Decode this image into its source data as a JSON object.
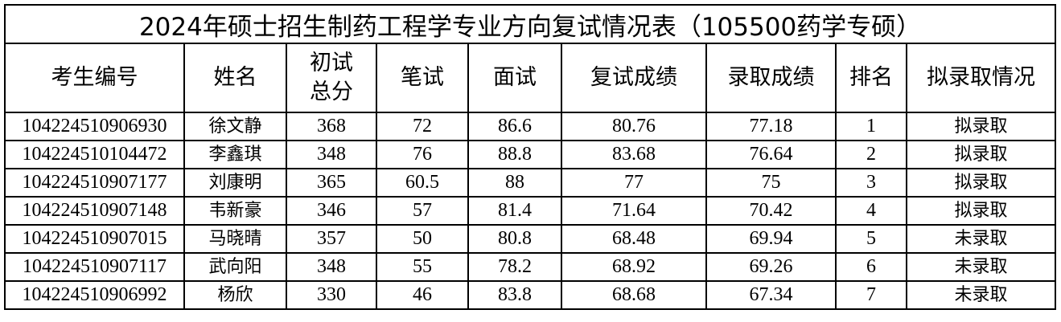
{
  "title": "2024年硕士招生制药工程学专业方向复试情况表（105500药学专硕）",
  "headers": [
    "考生编号",
    "姓名",
    "初试总分",
    "笔试",
    "面试",
    "复试成绩",
    "录取成绩",
    "排名",
    "拟录取情况"
  ],
  "rows": [
    [
      "104224510906930",
      "徐文静",
      "368",
      "72",
      "86.6",
      "80.76",
      "77.18",
      "1",
      "拟录取"
    ],
    [
      "104224510104472",
      "李鑫琪",
      "348",
      "76",
      "88.8",
      "83.68",
      "76.64",
      "2",
      "拟录取"
    ],
    [
      "104224510907177",
      "刘康明",
      "365",
      "60.5",
      "88",
      "77",
      "75",
      "3",
      "拟录取"
    ],
    [
      "104224510907148",
      "韦新豪",
      "346",
      "57",
      "81.4",
      "71.64",
      "70.42",
      "4",
      "拟录取"
    ],
    [
      "104224510907015",
      "马晓晴",
      "357",
      "50",
      "80.8",
      "68.48",
      "69.94",
      "5",
      "未录取"
    ],
    [
      "104224510907117",
      "武向阳",
      "348",
      "55",
      "78.2",
      "68.92",
      "69.26",
      "6",
      "未录取"
    ],
    [
      "104224510906992",
      "杨欣",
      "330",
      "46",
      "83.8",
      "68.68",
      "67.34",
      "7",
      "未录取"
    ]
  ]
}
